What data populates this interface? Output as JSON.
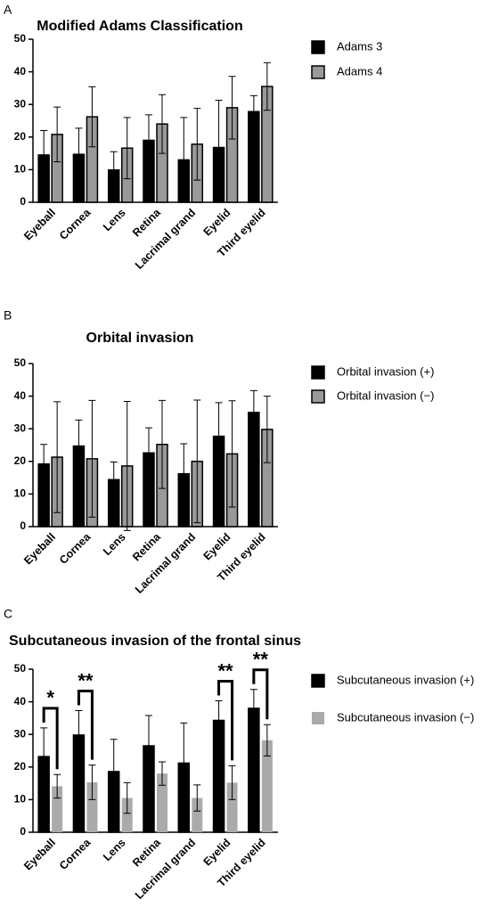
{
  "chart_data": [
    {
      "type": "bar",
      "panel": "A",
      "title": "Modified Adams Classification",
      "categories": [
        "Eyeball",
        "Cornea",
        "Lens",
        "Retina",
        "Lacrimal grand",
        "Eyelid",
        "Third eyelid"
      ],
      "series": [
        {
          "name": "Adams 3",
          "color": "#000000",
          "stroke": "#000000",
          "values": [
            14.5,
            14.7,
            9.9,
            19,
            13,
            16.8,
            27.8
          ],
          "errors": [
            7.5,
            8,
            5.6,
            7.8,
            13,
            14.5,
            4.9
          ]
        },
        {
          "name": "Adams 4",
          "color": "#999999",
          "stroke": "#000000",
          "values": [
            20.8,
            26.2,
            16.6,
            24,
            17.8,
            29,
            35.5
          ],
          "errors": [
            8.4,
            9.2,
            9.4,
            9,
            11,
            9.6,
            7.3
          ]
        }
      ],
      "ylim": [
        0,
        50
      ],
      "yticks": [
        0,
        10,
        20,
        30,
        40,
        50
      ],
      "legend": "right"
    },
    {
      "type": "bar",
      "panel": "B",
      "title": "Orbital invasion",
      "categories": [
        "Eyeball",
        "Cornea",
        "Lens",
        "Retina",
        "Lacrimal grand",
        "Eyelid",
        "Third eyelid"
      ],
      "series": [
        {
          "name": "Orbital invasion (+)",
          "color": "#000000",
          "stroke": "#000000",
          "values": [
            19.2,
            24.7,
            14.4,
            22.6,
            16.2,
            27.7,
            35
          ],
          "errors": [
            6,
            8,
            5.4,
            7.7,
            9.2,
            10.3,
            6.7
          ]
        },
        {
          "name": "Orbital invasion (−)",
          "color": "#999999",
          "stroke": "#000000",
          "values": [
            21.3,
            20.8,
            18.6,
            25.2,
            20,
            22.3,
            29.8
          ],
          "errors": [
            17,
            17.9,
            19.8,
            13.5,
            18.8,
            16.3,
            10.2
          ]
        }
      ],
      "ylim": [
        0,
        50
      ],
      "yticks": [
        0,
        10,
        20,
        30,
        40,
        50
      ],
      "legend": "right"
    },
    {
      "type": "bar",
      "panel": "C",
      "title": "Subcutaneous invasion of the frontal sinus",
      "categories": [
        "Eyeball",
        "Cornea",
        "Lens",
        "Retina",
        "Lacrimal grand",
        "Eyelid",
        "Third eyelid"
      ],
      "series": [
        {
          "name": "Subcutaneous invasion (+)",
          "color": "#000000",
          "stroke": "#000000",
          "values": [
            23.2,
            29.8,
            18.6,
            26.5,
            21.2,
            34.3,
            38
          ],
          "errors": [
            8.8,
            7.5,
            9.9,
            9.3,
            12.3,
            6,
            5.8
          ]
        },
        {
          "name": "Subcutaneous invasion (−)",
          "color": "#aaaaaa",
          "stroke": "none",
          "values": [
            14.1,
            15.3,
            10.5,
            18,
            10.5,
            15.2,
            28.2
          ],
          "errors": [
            3.6,
            5.3,
            4.7,
            3.6,
            4,
            5.2,
            4.8
          ]
        }
      ],
      "ylim": [
        0,
        50
      ],
      "yticks": [
        0,
        10,
        20,
        30,
        40,
        50
      ],
      "legend": "right",
      "annotations": [
        {
          "text": "*",
          "category": "Eyeball"
        },
        {
          "text": "**",
          "category": "Cornea"
        },
        {
          "text": "**",
          "category": "Eyelid"
        },
        {
          "text": "**",
          "category": "Third eyelid"
        }
      ]
    }
  ]
}
